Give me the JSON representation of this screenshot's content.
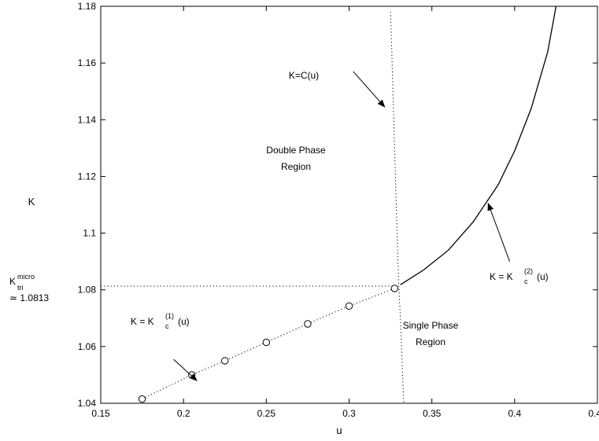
{
  "chart_data": {
    "type": "line",
    "xlabel": "u",
    "ylabel": "K",
    "xlim": [
      0.15,
      0.45
    ],
    "ylim": [
      1.04,
      1.18
    ],
    "x_ticks": [
      "0.15",
      "0.2",
      "0.25",
      "0.3",
      "0.35",
      "0.4",
      "0.45"
    ],
    "y_ticks": [
      "1.04",
      "1.06",
      "1.08",
      "1.1",
      "1.12",
      "1.14",
      "1.16",
      "1.18"
    ],
    "grid": false,
    "series": [
      {
        "style": "circles-dotted",
        "x": [
          0.175,
          0.205,
          0.225,
          0.25,
          0.275,
          0.3,
          0.3275
        ],
        "y": [
          1.0415,
          1.05,
          1.055,
          1.0615,
          1.068,
          1.0743,
          1.0805
        ]
      },
      {
        "style": "solid",
        "x": [
          0.331,
          0.345,
          0.36,
          0.375,
          0.39,
          0.4,
          0.41,
          0.42,
          0.425
        ],
        "y": [
          1.0818,
          1.087,
          1.094,
          1.104,
          1.117,
          1.129,
          1.144,
          1.164,
          1.18
        ]
      },
      {
        "style": "dotted",
        "x": [
          0.325,
          0.3255,
          0.326,
          0.3265,
          0.327,
          0.3275,
          0.328,
          0.3285,
          0.329,
          0.3295,
          0.33,
          0.331,
          0.332,
          0.333
        ],
        "y": [
          1.178,
          1.17,
          1.16,
          1.15,
          1.14,
          1.13,
          1.12,
          1.11,
          1.1,
          1.09,
          1.0815,
          1.07,
          1.055,
          1.04
        ]
      },
      {
        "style": "dotted",
        "x": [
          0.15,
          0.3275
        ],
        "y": [
          1.0813,
          1.0813
        ]
      }
    ],
    "annotations": {
      "k_c_of_u": {
        "text": "K=C(u)",
        "arrow_from": [
          0.3025,
          1.157
        ],
        "arrow_to": [
          0.3215,
          1.1445
        ]
      },
      "double_phase": {
        "line1": "Double Phase",
        "line2": "Region",
        "at": [
          0.283,
          1.1315
        ]
      },
      "single_phase": {
        "line1": "Single Phase",
        "line2": "Region",
        "at": [
          0.379,
          1.0705
        ]
      },
      "k_c1": {
        "prefix": "K = K",
        "sub": "c",
        "sup": "(1)",
        "suffix": "(u)",
        "arrow_from": [
          0.194,
          1.0555
        ],
        "arrow_to": [
          0.208,
          1.048
        ]
      },
      "k_c2": {
        "prefix": "K = K",
        "sub": "c",
        "sup": "(2)",
        "suffix": "(u)",
        "arrow_from": [
          0.397,
          1.09
        ],
        "arrow_to": [
          0.384,
          1.1105
        ]
      },
      "k_tri": {
        "base": "K",
        "sup": "micro",
        "sub": "tri",
        "approx": "≃ 1.0813"
      }
    }
  }
}
